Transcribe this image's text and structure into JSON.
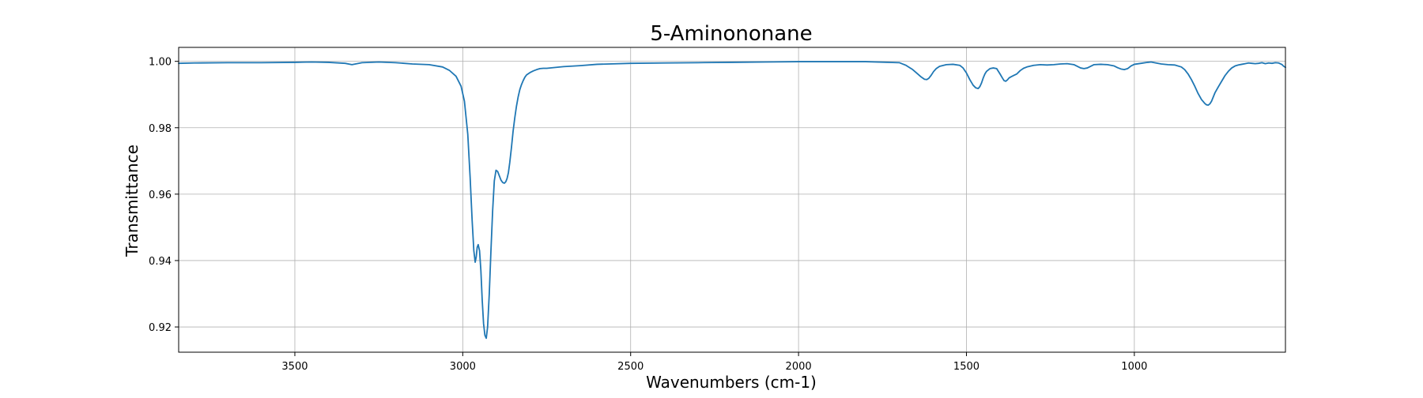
{
  "chart_data": {
    "type": "line",
    "title": "5-Aminononane",
    "xlabel": "Wavenumbers (cm-1)",
    "ylabel": "Transmittance",
    "xlim": [
      3846,
      550
    ],
    "ylim": [
      0.9124,
      1.0042
    ],
    "x_ticks": [
      3500,
      3000,
      2500,
      2000,
      1500,
      1000
    ],
    "y_ticks": [
      0.92,
      0.94,
      0.96,
      0.98,
      1.0
    ],
    "x_tick_labels": [
      "3500",
      "3000",
      "2500",
      "2000",
      "1500",
      "1000"
    ],
    "y_tick_labels": [
      "0.92",
      "0.94",
      "0.96",
      "0.98",
      "1.00"
    ],
    "grid": true,
    "legend": "none",
    "line_color": "#1f77b4",
    "series": [
      {
        "x": [
          3846,
          3800,
          3700,
          3600,
          3500,
          3450,
          3400,
          3350,
          3330,
          3300,
          3250,
          3200,
          3150,
          3100,
          3060,
          3040,
          3020,
          3005,
          2995,
          2985,
          2978,
          2972,
          2967,
          2963,
          2960,
          2957,
          2954,
          2950,
          2946,
          2942,
          2938,
          2934,
          2930,
          2926,
          2921,
          2916,
          2911,
          2906,
          2901,
          2896,
          2891,
          2886,
          2881,
          2876,
          2872,
          2868,
          2864,
          2860,
          2855,
          2850,
          2845,
          2840,
          2835,
          2830,
          2825,
          2820,
          2815,
          2810,
          2800,
          2790,
          2780,
          2770,
          2760,
          2750,
          2700,
          2650,
          2600,
          2500,
          2400,
          2300,
          2200,
          2100,
          2000,
          1900,
          1800,
          1700,
          1680,
          1660,
          1645,
          1635,
          1625,
          1618,
          1612,
          1605,
          1598,
          1590,
          1580,
          1560,
          1540,
          1520,
          1510,
          1500,
          1490,
          1480,
          1472,
          1465,
          1460,
          1455,
          1450,
          1445,
          1440,
          1430,
          1420,
          1410,
          1400,
          1393,
          1388,
          1383,
          1378,
          1373,
          1368,
          1360,
          1350,
          1340,
          1330,
          1320,
          1300,
          1280,
          1260,
          1240,
          1220,
          1200,
          1180,
          1170,
          1160,
          1150,
          1140,
          1130,
          1120,
          1100,
          1080,
          1060,
          1050,
          1040,
          1030,
          1020,
          1010,
          1000,
          980,
          960,
          950,
          940,
          920,
          900,
          880,
          860,
          850,
          840,
          830,
          820,
          810,
          800,
          790,
          785,
          780,
          775,
          770,
          760,
          750,
          740,
          730,
          720,
          710,
          700,
          690,
          680,
          670,
          660,
          650,
          640,
          630,
          620,
          610,
          600,
          590,
          580,
          570,
          560,
          555,
          550
        ],
        "values": [
          0.9994,
          0.9995,
          0.9996,
          0.9996,
          0.9997,
          0.9998,
          0.9997,
          0.9994,
          0.999,
          0.9996,
          0.9998,
          0.9996,
          0.9992,
          0.999,
          0.9983,
          0.9973,
          0.9955,
          0.9925,
          0.988,
          0.978,
          0.965,
          0.952,
          0.943,
          0.9395,
          0.941,
          0.944,
          0.9448,
          0.943,
          0.937,
          0.928,
          0.921,
          0.9175,
          0.9166,
          0.92,
          0.93,
          0.943,
          0.955,
          0.964,
          0.9672,
          0.9668,
          0.9655,
          0.9642,
          0.9635,
          0.9633,
          0.9637,
          0.9647,
          0.9665,
          0.9695,
          0.974,
          0.979,
          0.983,
          0.9865,
          0.9893,
          0.9915,
          0.993,
          0.9942,
          0.9952,
          0.9959,
          0.9966,
          0.9971,
          0.9975,
          0.9978,
          0.9979,
          0.9979,
          0.9984,
          0.9987,
          0.9991,
          0.9994,
          0.9995,
          0.9996,
          0.9997,
          0.9998,
          0.9999,
          0.9999,
          0.9999,
          0.9996,
          0.9988,
          0.9975,
          0.9962,
          0.9953,
          0.9946,
          0.9945,
          0.9949,
          0.9958,
          0.9969,
          0.9978,
          0.9985,
          0.999,
          0.9991,
          0.9988,
          0.998,
          0.9965,
          0.9945,
          0.9928,
          0.992,
          0.9918,
          0.9924,
          0.9935,
          0.995,
          0.9962,
          0.997,
          0.9978,
          0.998,
          0.9978,
          0.9962,
          0.995,
          0.9942,
          0.994,
          0.9944,
          0.995,
          0.9953,
          0.9957,
          0.9962,
          0.9972,
          0.9979,
          0.9983,
          0.9988,
          0.999,
          0.9989,
          0.999,
          0.9992,
          0.9993,
          0.999,
          0.9985,
          0.998,
          0.9978,
          0.998,
          0.9985,
          0.999,
          0.9991,
          0.999,
          0.9986,
          0.9981,
          0.9977,
          0.9975,
          0.9978,
          0.9986,
          0.9991,
          0.9994,
          0.9997,
          0.9998,
          0.9996,
          0.9992,
          0.999,
          0.9989,
          0.9983,
          0.9975,
          0.9962,
          0.9945,
          0.9925,
          0.9903,
          0.9885,
          0.9873,
          0.9869,
          0.9868,
          0.9872,
          0.988,
          0.9905,
          0.9923,
          0.994,
          0.9957,
          0.997,
          0.998,
          0.9986,
          0.9989,
          0.9991,
          0.9993,
          0.9995,
          0.9994,
          0.9993,
          0.9994,
          0.9996,
          0.9993,
          0.9995,
          0.9994,
          0.9996,
          0.9995,
          0.999,
          0.9985,
          0.9982
        ]
      }
    ]
  }
}
